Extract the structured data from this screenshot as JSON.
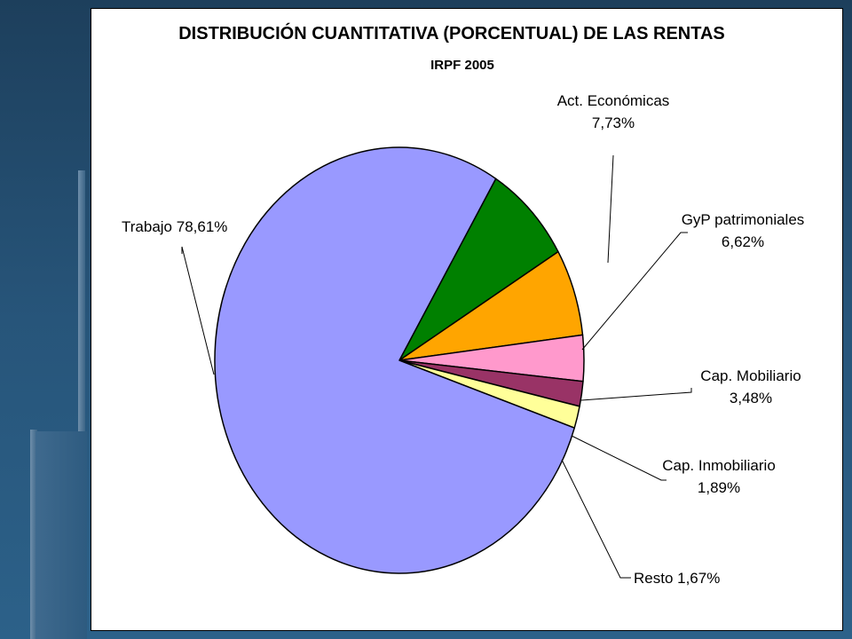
{
  "chart_data": {
    "type": "pie",
    "title": "DISTRIBUCIÓN CUANTITATIVA (PORCENTUAL) DE LAS RENTAS",
    "subtitle": "IRPF 2005",
    "slices": [
      {
        "label_lines": [
          "Act. Económicas",
          "7,73%"
        ],
        "value": 7.73,
        "color": "#008000"
      },
      {
        "label_lines": [
          "GyP patrimoniales",
          "6,62%"
        ],
        "value": 6.62,
        "color": "#ffa500"
      },
      {
        "label_lines": [
          "Cap. Mobiliario",
          "3,48%"
        ],
        "value": 3.48,
        "color": "#ff99cc"
      },
      {
        "label_lines": [
          "Cap. Inmobiliario",
          "1,89%"
        ],
        "value": 1.89,
        "color": "#993366"
      },
      {
        "label_lines": [
          "Resto 1,67%"
        ],
        "value": 1.67,
        "color": "#ffff99"
      },
      {
        "label_lines": [
          "Trabajo 78,61%"
        ],
        "value": 78.61,
        "color": "#9999ff"
      }
    ]
  }
}
